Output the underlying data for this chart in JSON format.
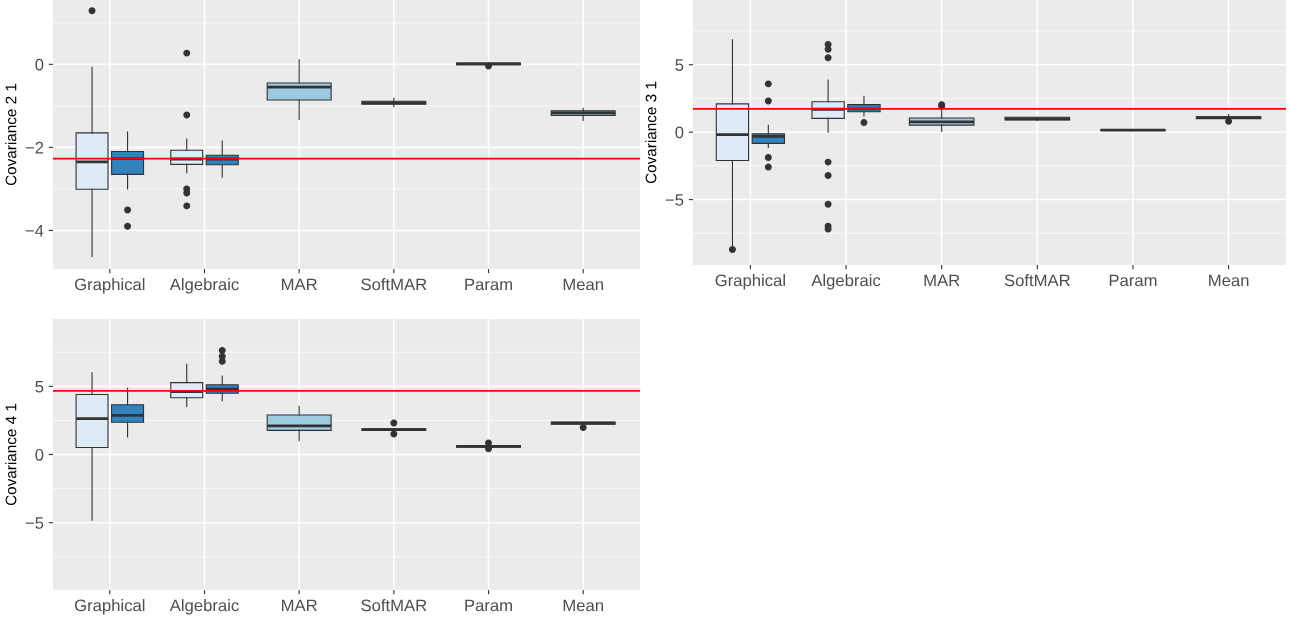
{
  "chart_data": [
    {
      "type": "box",
      "ylabel": "Covariance 2 1",
      "categories": [
        "Graphical",
        "Algebraic",
        "MAR",
        "SoftMAR",
        "Param",
        "Mean"
      ],
      "ylim": [
        -4.93,
        1.55
      ],
      "yticks": [
        {
          "value": -4,
          "label": "−4"
        },
        {
          "value": -2,
          "label": "−2"
        },
        0
      ],
      "grid": true,
      "ref_lines": [
        {
          "axis": "y",
          "value": -2.27,
          "color": "#ff0000"
        }
      ],
      "series": [
        {
          "color": "#deebf7",
          "boxes": [
            {
              "low": -4.63,
              "q1": -3.01,
              "median": -2.35,
              "q3": -1.65,
              "high": -0.07,
              "outliers": [
                1.29
              ]
            },
            {
              "low": -2.61,
              "q1": -2.41,
              "median": -2.28,
              "q3": -2.07,
              "high": -1.8,
              "outliers": [
                0.27,
                -1.22,
                -3.0,
                -3.1,
                -3.41
              ]
            },
            null,
            null,
            null,
            null
          ]
        },
        {
          "color": "#3182bd",
          "boxes": [
            {
              "low": -3.0,
              "q1": -2.65,
              "median": -2.27,
              "q3": -2.1,
              "high": -1.63,
              "outliers": [
                -3.51,
                -3.9
              ]
            },
            {
              "low": -2.72,
              "q1": -2.42,
              "median": -2.28,
              "q3": -2.19,
              "high": -1.85
            },
            null,
            null,
            null,
            null
          ]
        },
        {
          "color": "#9ecae1",
          "boxes": [
            null,
            null,
            {
              "low": -1.33,
              "q1": -0.86,
              "median": -0.55,
              "q3": -0.45,
              "high": 0.11
            },
            {
              "low": -1.02,
              "q1": -0.96,
              "median": -0.93,
              "q3": -0.89,
              "high": -0.82
            },
            {
              "low": -0.01,
              "q1": -0.01,
              "median": 0.01,
              "q3": 0.03,
              "high": 0.03,
              "outliers": [
                -0.04
              ]
            },
            {
              "low": -1.35,
              "q1": -1.23,
              "median": -1.17,
              "q3": -1.12,
              "high": -1.06
            }
          ]
        }
      ]
    },
    {
      "type": "box",
      "ylabel": "Covariance 3 1",
      "categories": [
        "Graphical",
        "Algebraic",
        "MAR",
        "SoftMAR",
        "Param",
        "Mean"
      ],
      "ylim": [
        -9.85,
        9.8
      ],
      "yticks": [
        {
          "value": -5,
          "label": "−5"
        },
        0,
        5
      ],
      "grid": true,
      "ref_lines": [
        {
          "axis": "y",
          "value": 1.73,
          "color": "#ff0000"
        }
      ],
      "series": [
        {
          "color": "#deebf7",
          "boxes": [
            {
              "low": -8.4,
              "q1": -2.1,
              "median": -0.19,
              "q3": 2.1,
              "high": 6.85,
              "outliers": [
                -8.7
              ]
            },
            {
              "low": 0,
              "q1": 1.02,
              "median": 1.7,
              "q3": 2.25,
              "high": 3.86,
              "outliers": [
                6.5,
                6.14,
                5.52,
                -2.22,
                -3.21,
                -5.34,
                -6.98,
                -7.19
              ]
            },
            null,
            null,
            null,
            null
          ]
        },
        {
          "color": "#3182bd",
          "boxes": [
            {
              "low": -1.14,
              "q1": -0.83,
              "median": -0.31,
              "q3": -0.12,
              "high": 0.5,
              "outliers": [
                3.58,
                2.31,
                -1.88,
                -2.59
              ]
            },
            {
              "low": 1.2,
              "q1": 1.51,
              "median": 1.73,
              "q3": 2.04,
              "high": 2.65,
              "outliers": [
                0.71
              ]
            },
            null,
            null,
            null,
            null
          ]
        },
        {
          "color": "#9ecae1",
          "boxes": [
            null,
            null,
            {
              "low": 0.06,
              "q1": 0.52,
              "median": 0.77,
              "q3": 1.05,
              "high": 1.6,
              "outliers": [
                2.04,
                1.91
              ]
            },
            {
              "low": 0.86,
              "q1": 0.9,
              "median": 0.99,
              "q3": 1.11,
              "high": 1.11
            },
            {
              "low": 0.1,
              "q1": 0.12,
              "median": 0.15,
              "q3": 0.18,
              "high": 0.2
            },
            {
              "low": 0.93,
              "q1": 0.99,
              "median": 1.08,
              "q3": 1.14,
              "high": 1.3,
              "outliers": [
                0.8
              ]
            }
          ]
        }
      ]
    },
    {
      "type": "box",
      "ylabel": "Covariance 4 1",
      "categories": [
        "Graphical",
        "Algebraic",
        "MAR",
        "SoftMAR",
        "Param",
        "Mean"
      ],
      "ylim": [
        -9.94,
        9.94
      ],
      "yticks": [
        {
          "value": -5,
          "label": "−5"
        },
        0,
        5
      ],
      "grid": true,
      "ref_lines": [
        {
          "axis": "y",
          "value": 4.67,
          "color": "#ff0000"
        }
      ],
      "series": [
        {
          "color": "#deebf7",
          "boxes": [
            {
              "low": -4.82,
              "q1": 0.51,
              "median": 2.63,
              "q3": 4.4,
              "high": 5.99
            },
            {
              "low": 3.53,
              "q1": 4.16,
              "median": 4.61,
              "q3": 5.27,
              "high": 6.62
            },
            null,
            null,
            null,
            null
          ]
        },
        {
          "color": "#3182bd",
          "boxes": [
            {
              "low": 1.29,
              "q1": 2.37,
              "median": 2.87,
              "q3": 3.65,
              "high": 4.85
            },
            {
              "low": 3.95,
              "q1": 4.49,
              "median": 4.79,
              "q3": 5.12,
              "high": 5.75,
              "outliers": [
                7.63,
                7.19,
                6.83
              ]
            },
            null,
            null,
            null,
            null
          ]
        },
        {
          "color": "#9ecae1",
          "boxes": [
            null,
            null,
            {
              "low": 1.02,
              "q1": 1.77,
              "median": 2.1,
              "q3": 2.9,
              "high": 3.53
            },
            {
              "low": 1.77,
              "q1": 1.77,
              "median": 1.83,
              "q3": 1.89,
              "high": 1.89,
              "outliers": [
                2.31,
                1.5
              ]
            },
            {
              "low": 0.5,
              "q1": 0.54,
              "median": 0.6,
              "q3": 0.66,
              "high": 0.7,
              "outliers": [
                0.84,
                0.42
              ]
            },
            {
              "low": 2.15,
              "q1": 2.22,
              "median": 2.31,
              "q3": 2.37,
              "high": 2.37,
              "outliers": [
                1.98
              ]
            }
          ]
        }
      ]
    }
  ]
}
